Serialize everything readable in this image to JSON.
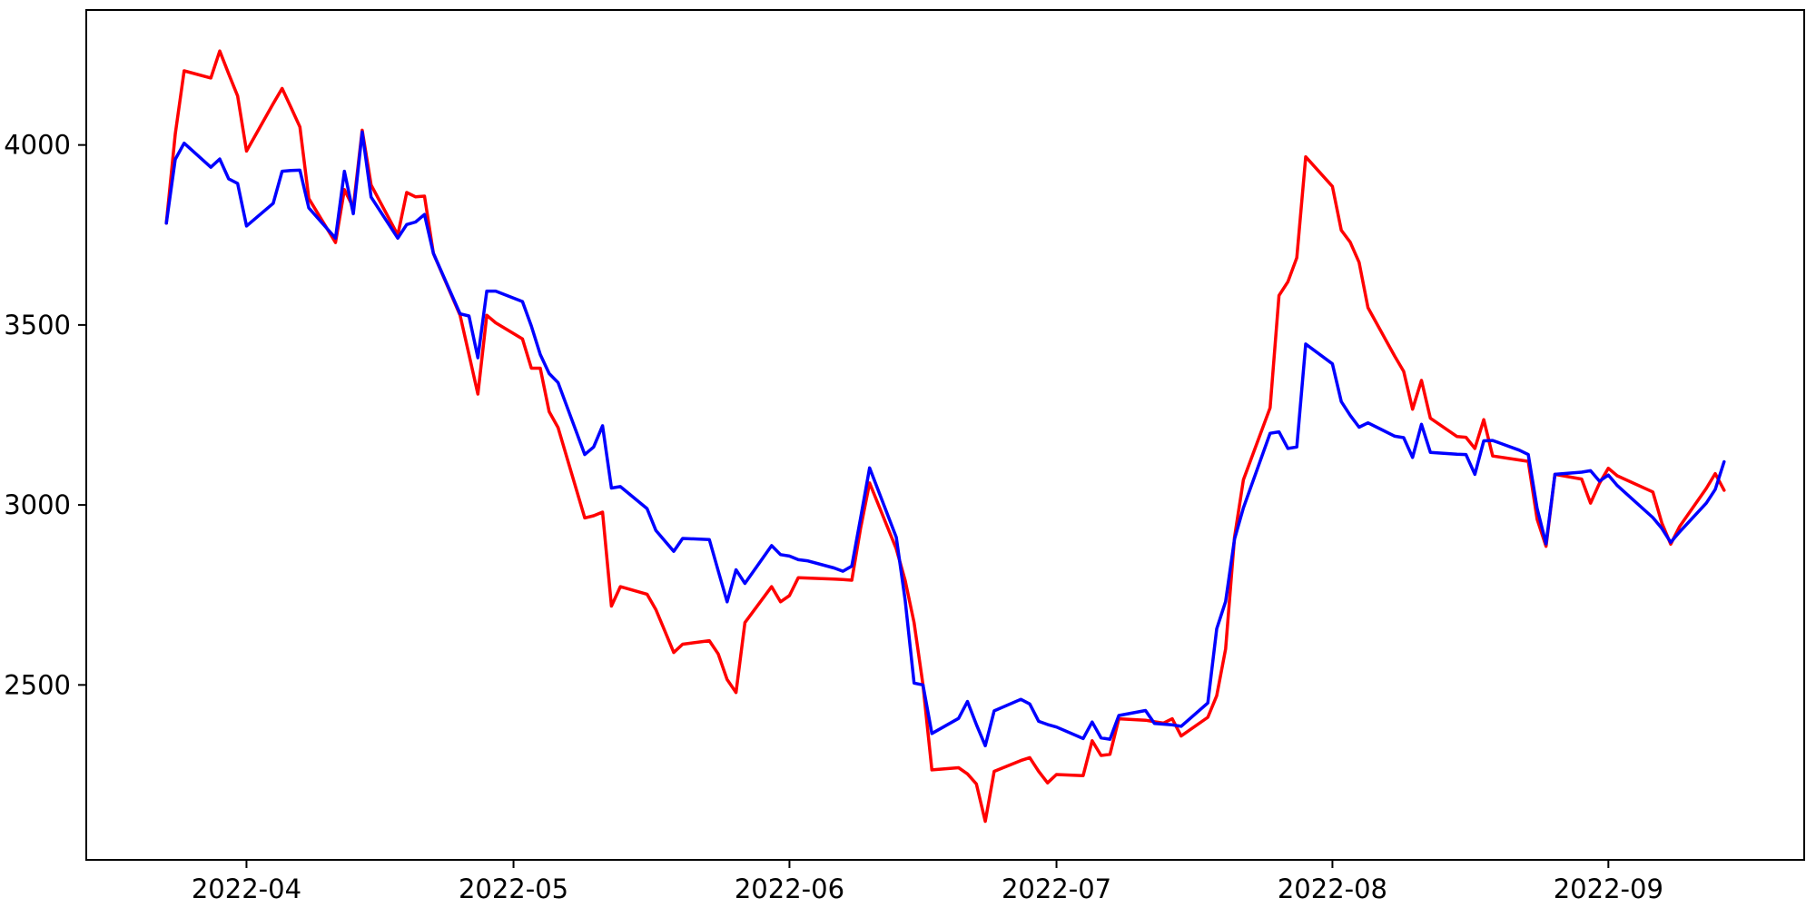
{
  "figure": {
    "background_color": "#ffffff",
    "plot_border_color": "#000000",
    "tick_color": "#000000",
    "tick_label_color": "#000000"
  },
  "chart_data": {
    "type": "line",
    "title": "",
    "xlabel": "",
    "ylabel": "",
    "grid": false,
    "legend": "none",
    "x_axis": {
      "tick_labels": [
        "2022-04",
        "2022-05",
        "2022-06",
        "2022-07",
        "2022-08",
        "2022-09"
      ],
      "tick_dates": [
        "2022-04-01",
        "2022-05-01",
        "2022-06-01",
        "2022-07-01",
        "2022-08-01",
        "2022-09-01"
      ],
      "range": [
        "2022-03-14",
        "2022-09-23"
      ]
    },
    "y_axis": {
      "tick_labels": [
        "2500",
        "3000",
        "3500",
        "4000"
      ],
      "ticks": [
        2500,
        3000,
        3500,
        4000
      ],
      "range": [
        2014,
        4375
      ]
    },
    "x_dates": [
      "2022-03-23",
      "2022-03-24",
      "2022-03-25",
      "2022-03-28",
      "2022-03-29",
      "2022-03-30",
      "2022-03-31",
      "2022-04-01",
      "2022-04-04",
      "2022-04-05",
      "2022-04-06",
      "2022-04-07",
      "2022-04-08",
      "2022-04-11",
      "2022-04-12",
      "2022-04-13",
      "2022-04-14",
      "2022-04-15",
      "2022-04-18",
      "2022-04-19",
      "2022-04-20",
      "2022-04-21",
      "2022-04-22",
      "2022-04-25",
      "2022-04-26",
      "2022-04-27",
      "2022-04-28",
      "2022-04-29",
      "2022-05-02",
      "2022-05-03",
      "2022-05-04",
      "2022-05-05",
      "2022-05-06",
      "2022-05-09",
      "2022-05-10",
      "2022-05-11",
      "2022-05-12",
      "2022-05-13",
      "2022-05-16",
      "2022-05-17",
      "2022-05-18",
      "2022-05-19",
      "2022-05-20",
      "2022-05-23",
      "2022-05-24",
      "2022-05-25",
      "2022-05-26",
      "2022-05-27",
      "2022-05-30",
      "2022-05-31",
      "2022-06-01",
      "2022-06-02",
      "2022-06-03",
      "2022-06-06",
      "2022-06-07",
      "2022-06-08",
      "2022-06-09",
      "2022-06-10",
      "2022-06-13",
      "2022-06-14",
      "2022-06-15",
      "2022-06-16",
      "2022-06-17",
      "2022-06-20",
      "2022-06-21",
      "2022-06-22",
      "2022-06-23",
      "2022-06-24",
      "2022-06-27",
      "2022-06-28",
      "2022-06-29",
      "2022-06-30",
      "2022-07-01",
      "2022-07-04",
      "2022-07-05",
      "2022-07-06",
      "2022-07-07",
      "2022-07-08",
      "2022-07-11",
      "2022-07-12",
      "2022-07-13",
      "2022-07-14",
      "2022-07-15",
      "2022-07-18",
      "2022-07-19",
      "2022-07-20",
      "2022-07-21",
      "2022-07-22",
      "2022-07-25",
      "2022-07-26",
      "2022-07-27",
      "2022-07-28",
      "2022-07-29",
      "2022-08-01",
      "2022-08-02",
      "2022-08-03",
      "2022-08-04",
      "2022-08-05",
      "2022-08-08",
      "2022-08-09",
      "2022-08-10",
      "2022-08-11",
      "2022-08-12",
      "2022-08-15",
      "2022-08-16",
      "2022-08-17",
      "2022-08-18",
      "2022-08-19",
      "2022-08-22",
      "2022-08-23",
      "2022-08-24",
      "2022-08-25",
      "2022-08-26",
      "2022-08-29",
      "2022-08-30",
      "2022-08-31",
      "2022-09-01",
      "2022-09-02",
      "2022-09-06",
      "2022-09-07",
      "2022-09-08",
      "2022-09-09",
      "2022-09-12",
      "2022-09-13",
      "2022-09-14"
    ],
    "series": [
      {
        "name": "red",
        "color": "#ff0000",
        "values": [
          3783,
          4030,
          4206,
          4186,
          4261,
          4198,
          4136,
          3983,
          4115,
          4157,
          4104,
          4050,
          3851,
          3729,
          3876,
          3826,
          4041,
          3889,
          3750,
          3868,
          3856,
          3858,
          3699,
          3527,
          3418,
          3308,
          3527,
          3506,
          3461,
          3380,
          3380,
          3259,
          3215,
          2964,
          2970,
          2980,
          2719,
          2773,
          2752,
          2709,
          2650,
          2590,
          2613,
          2623,
          2586,
          2515,
          2479,
          2673,
          2773,
          2731,
          2748,
          2798,
          2797,
          2794,
          2793,
          2791,
          2937,
          3061,
          2878,
          2790,
          2673,
          2500,
          2264,
          2270,
          2253,
          2225,
          2121,
          2260,
          2290,
          2298,
          2260,
          2228,
          2251,
          2248,
          2345,
          2304,
          2307,
          2406,
          2402,
          2398,
          2394,
          2406,
          2358,
          2410,
          2470,
          2600,
          2910,
          3070,
          3270,
          3582,
          3620,
          3687,
          3967,
          3885,
          3763,
          3730,
          3674,
          3548,
          3413,
          3371,
          3266,
          3346,
          3241,
          3190,
          3188,
          3157,
          3237,
          3136,
          3125,
          3121,
          2960,
          2885,
          3085,
          3072,
          3005,
          3060,
          3102,
          3081,
          3036,
          2950,
          2891,
          2940,
          3046,
          3087,
          3041
        ]
      },
      {
        "name": "blue",
        "color": "#0000ff",
        "values": [
          3783,
          3960,
          4005,
          3938,
          3961,
          3906,
          3893,
          3775,
          3838,
          3927,
          3929,
          3930,
          3825,
          3741,
          3927,
          3809,
          4036,
          3855,
          3741,
          3779,
          3786,
          3807,
          3699,
          3531,
          3525,
          3409,
          3594,
          3594,
          3565,
          3497,
          3418,
          3365,
          3340,
          3140,
          3161,
          3220,
          3047,
          3051,
          2990,
          2929,
          2900,
          2871,
          2907,
          2904,
          2817,
          2731,
          2820,
          2782,
          2887,
          2862,
          2858,
          2848,
          2845,
          2825,
          2816,
          2830,
          2965,
          3103,
          2910,
          2735,
          2505,
          2500,
          2365,
          2407,
          2454,
          2390,
          2331,
          2428,
          2460,
          2447,
          2399,
          2390,
          2383,
          2351,
          2397,
          2353,
          2349,
          2415,
          2429,
          2393,
          2391,
          2389,
          2385,
          2450,
          2656,
          2732,
          2905,
          2992,
          3199,
          3203,
          3157,
          3161,
          3447,
          3392,
          3287,
          3249,
          3216,
          3228,
          3191,
          3187,
          3132,
          3224,
          3146,
          3141,
          3140,
          3085,
          3178,
          3179,
          3152,
          3140,
          2990,
          2892,
          3085,
          3091,
          3095,
          3066,
          3083,
          3054,
          2965,
          2935,
          2896,
          2925,
          3005,
          3043,
          3120
        ]
      }
    ]
  }
}
